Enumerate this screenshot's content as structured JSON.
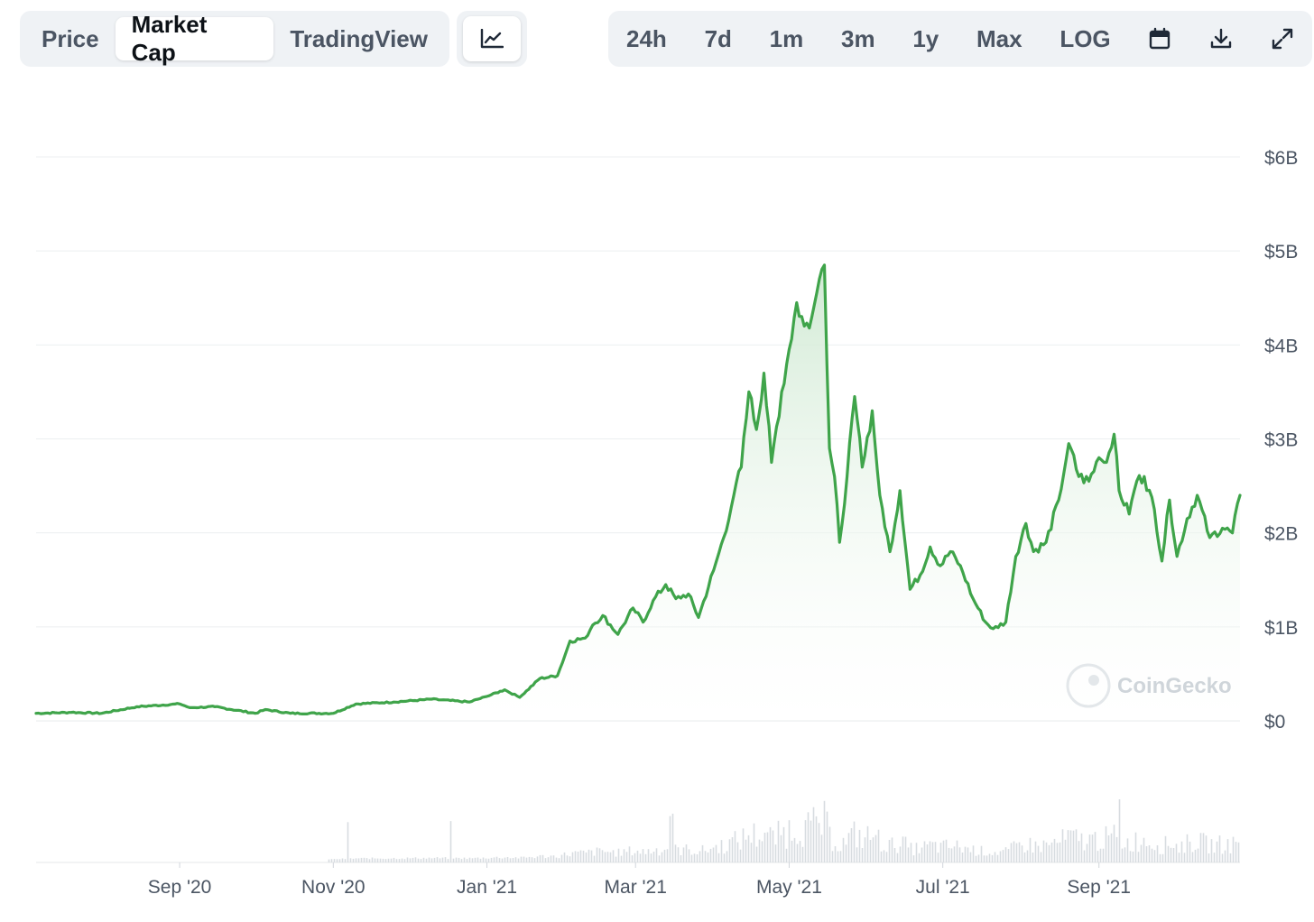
{
  "toolbar": {
    "tabs": [
      {
        "label": "Price",
        "active": false
      },
      {
        "label": "Market Cap",
        "active": true
      },
      {
        "label": "TradingView",
        "active": false
      }
    ],
    "chart_type_icon": "line-chart-icon",
    "ranges": [
      "24h",
      "7d",
      "1m",
      "3m",
      "1y",
      "Max",
      "LOG"
    ],
    "icons": [
      "calendar-icon",
      "download-icon",
      "fullscreen-icon"
    ]
  },
  "watermark": "CoinGecko",
  "colors": {
    "line": "#3fa44a",
    "fill_top": "#cfe9d2",
    "grid": "#eceff1",
    "volume": "#d7dce0"
  },
  "chart_data": {
    "type": "area",
    "ylim": [
      0,
      6
    ],
    "yunit": "$B",
    "yticks": [
      {
        "value": 0,
        "label": "$0"
      },
      {
        "value": 1,
        "label": "$1B"
      },
      {
        "value": 2,
        "label": "$2B"
      },
      {
        "value": 3,
        "label": "$3B"
      },
      {
        "value": 4,
        "label": "$4B"
      },
      {
        "value": 5,
        "label": "$5B"
      },
      {
        "value": 6,
        "label": "$6B"
      }
    ],
    "xlim": [
      "2020-07-06",
      "2021-10-27"
    ],
    "xticks": [
      {
        "date": "2020-09-01",
        "label": "Sep '20"
      },
      {
        "date": "2020-11-01",
        "label": "Nov '20"
      },
      {
        "date": "2021-01-01",
        "label": "Jan '21"
      },
      {
        "date": "2021-03-01",
        "label": "Mar '21"
      },
      {
        "date": "2021-05-01",
        "label": "May '21"
      },
      {
        "date": "2021-07-01",
        "label": "Jul '21"
      },
      {
        "date": "2021-09-01",
        "label": "Sep '21"
      }
    ],
    "grid": true,
    "series": [
      {
        "points": [
          [
            "2020-07-06",
            0.08
          ],
          [
            "2020-07-20",
            0.09
          ],
          [
            "2020-08-01",
            0.08
          ],
          [
            "2020-08-15",
            0.15
          ],
          [
            "2020-09-01",
            0.18
          ],
          [
            "2020-09-05",
            0.14
          ],
          [
            "2020-09-15",
            0.15
          ],
          [
            "2020-10-01",
            0.08
          ],
          [
            "2020-10-05",
            0.12
          ],
          [
            "2020-10-15",
            0.08
          ],
          [
            "2020-11-01",
            0.08
          ],
          [
            "2020-11-10",
            0.18
          ],
          [
            "2020-11-25",
            0.2
          ],
          [
            "2020-12-10",
            0.23
          ],
          [
            "2020-12-25",
            0.2
          ],
          [
            "2021-01-01",
            0.26
          ],
          [
            "2021-01-08",
            0.33
          ],
          [
            "2021-01-14",
            0.25
          ],
          [
            "2021-01-22",
            0.45
          ],
          [
            "2021-01-29",
            0.48
          ],
          [
            "2021-02-03",
            0.85
          ],
          [
            "2021-02-09",
            0.88
          ],
          [
            "2021-02-12",
            1.02
          ],
          [
            "2021-02-16",
            1.12
          ],
          [
            "2021-02-22",
            0.92
          ],
          [
            "2021-02-28",
            1.2
          ],
          [
            "2021-03-04",
            1.05
          ],
          [
            "2021-03-08",
            1.28
          ],
          [
            "2021-03-13",
            1.45
          ],
          [
            "2021-03-17",
            1.3
          ],
          [
            "2021-03-22",
            1.35
          ],
          [
            "2021-03-26",
            1.1
          ],
          [
            "2021-04-01",
            1.6
          ],
          [
            "2021-04-05",
            1.95
          ],
          [
            "2021-04-09",
            2.4
          ],
          [
            "2021-04-12",
            2.7
          ],
          [
            "2021-04-15",
            3.5
          ],
          [
            "2021-04-18",
            3.1
          ],
          [
            "2021-04-21",
            3.7
          ],
          [
            "2021-04-24",
            2.75
          ],
          [
            "2021-04-28",
            3.5
          ],
          [
            "2021-05-01",
            3.95
          ],
          [
            "2021-05-04",
            4.45
          ],
          [
            "2021-05-07",
            4.2
          ],
          [
            "2021-05-10",
            4.3
          ],
          [
            "2021-05-13",
            4.7
          ],
          [
            "2021-05-15",
            4.85
          ],
          [
            "2021-05-17",
            2.9
          ],
          [
            "2021-05-19",
            2.6
          ],
          [
            "2021-05-21",
            1.9
          ],
          [
            "2021-05-24",
            2.6
          ],
          [
            "2021-05-27",
            3.45
          ],
          [
            "2021-05-30",
            2.7
          ],
          [
            "2021-06-03",
            3.3
          ],
          [
            "2021-06-06",
            2.4
          ],
          [
            "2021-06-10",
            1.8
          ],
          [
            "2021-06-14",
            2.45
          ],
          [
            "2021-06-18",
            1.4
          ],
          [
            "2021-06-22",
            1.55
          ],
          [
            "2021-06-26",
            1.85
          ],
          [
            "2021-06-30",
            1.65
          ],
          [
            "2021-07-04",
            1.8
          ],
          [
            "2021-07-08",
            1.65
          ],
          [
            "2021-07-13",
            1.3
          ],
          [
            "2021-07-18",
            1.05
          ],
          [
            "2021-07-21",
            0.98
          ],
          [
            "2021-07-26",
            1.05
          ],
          [
            "2021-07-30",
            1.75
          ],
          [
            "2021-08-03",
            2.1
          ],
          [
            "2021-08-06",
            1.8
          ],
          [
            "2021-08-11",
            1.9
          ],
          [
            "2021-08-16",
            2.35
          ],
          [
            "2021-08-20",
            2.95
          ],
          [
            "2021-08-24",
            2.6
          ],
          [
            "2021-08-28",
            2.55
          ],
          [
            "2021-09-01",
            2.8
          ],
          [
            "2021-09-04",
            2.75
          ],
          [
            "2021-09-07",
            3.05
          ],
          [
            "2021-09-09",
            2.45
          ],
          [
            "2021-09-13",
            2.2
          ],
          [
            "2021-09-16",
            2.55
          ],
          [
            "2021-09-19",
            2.6
          ],
          [
            "2021-09-23",
            2.25
          ],
          [
            "2021-09-26",
            1.7
          ],
          [
            "2021-09-29",
            2.35
          ],
          [
            "2021-10-02",
            1.75
          ],
          [
            "2021-10-06",
            2.15
          ],
          [
            "2021-10-10",
            2.4
          ],
          [
            "2021-10-15",
            1.95
          ],
          [
            "2021-10-20",
            2.05
          ],
          [
            "2021-10-24",
            2.0
          ],
          [
            "2021-10-27",
            2.4
          ]
        ]
      }
    ]
  }
}
